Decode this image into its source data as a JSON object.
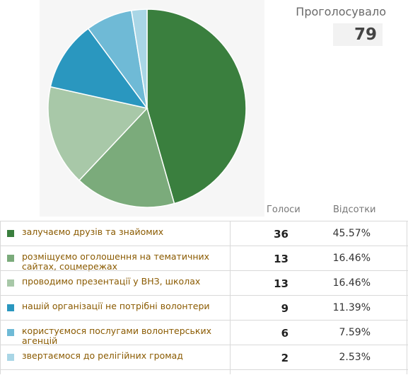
{
  "summary": {
    "total_label": "Проголосувало",
    "total_value": "79"
  },
  "table": {
    "col_votes": "Голоси",
    "col_percent": "Відсотки"
  },
  "chart_data": {
    "type": "pie",
    "categories": [
      "залучаємо друзів та знайомих",
      "розміщуємо оголошення на тематичних сайтах, соцмережах",
      "проводимо презентації у ВНЗ, школах",
      "нашій організації не потрібні волонтери",
      "користуємося послугами волонтерських агенцій",
      "звертаємося до релігійних громад"
    ],
    "values": [
      36,
      13,
      13,
      9,
      6,
      2
    ],
    "colors": [
      "#3a7f3e",
      "#7bab7b",
      "#a8c8a8",
      "#2a97bf",
      "#6fbad6",
      "#a9d6e6"
    ],
    "start": "12 o'clock",
    "direction": "clockwise"
  },
  "rows": [
    {
      "label": "залучаємо друзів та знайомих",
      "votes": "36",
      "percent": "45.57%"
    },
    {
      "label": "розміщуємо оголошення на тематичних сайтах, соцмережах",
      "votes": "13",
      "percent": "16.46%"
    },
    {
      "label": "проводимо презентації у ВНЗ, школах",
      "votes": "13",
      "percent": "16.46%"
    },
    {
      "label": "нашій організації не потрібні волонтери",
      "votes": "9",
      "percent": "11.39%"
    },
    {
      "label": "користуємося послугами волонтерських агенцій",
      "votes": "6",
      "percent": "7.59%"
    },
    {
      "label": "звертаємося до релігійних громад",
      "votes": "2",
      "percent": "2.53%"
    }
  ]
}
